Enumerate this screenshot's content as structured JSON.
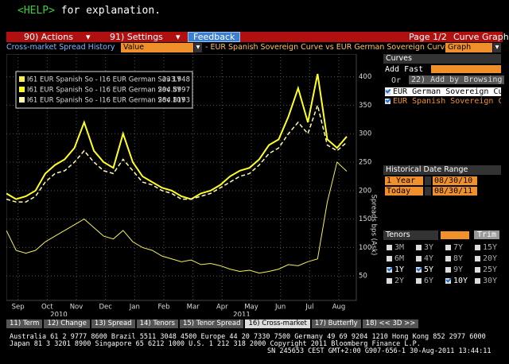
{
  "help": {
    "key": "<HELP>",
    "text": "for explanation."
  },
  "toolbar": {
    "actions": "90) Actions",
    "settings": "91) Settings",
    "feedback": "Feedback",
    "page": "Page 1/2",
    "view": "Curve Graph"
  },
  "subbar": {
    "title": "Cross-market Spread History",
    "field": "Value",
    "description": "- EUR Spanish Sovereign Curve vs EUR German Sovereign Curve",
    "mode": "Graph"
  },
  "chart": {
    "type": "line",
    "y_label": "Spreads bps (Ask)",
    "categories": [
      "Sep",
      "Oct",
      "Nov",
      "Dec",
      "Jan",
      "Feb",
      "Mar",
      "Apr",
      "May",
      "Jun",
      "Jul",
      "Aug"
    ],
    "years": [
      "2010",
      "2011"
    ],
    "ylim": [
      7,
      440
    ],
    "yticks": [
      50,
      100,
      150,
      200,
      250,
      300,
      350,
      400
    ],
    "grid": true,
    "series": [
      {
        "name": "I61 EUR Spanish So - I16 EUR German Sov 1Y",
        "last": 233.948,
        "color": "#f5f05a",
        "dash": false,
        "width": 1,
        "values": [
          130,
          95,
          90,
          95,
          110,
          120,
          130,
          140,
          150,
          135,
          120,
          115,
          130,
          110,
          100,
          95,
          85,
          80,
          75,
          78,
          70,
          72,
          68,
          62,
          58,
          60,
          55,
          58,
          62,
          70,
          68,
          75,
          80,
          180,
          250,
          234
        ]
      },
      {
        "name": "I61 EUR Spanish So - I16 EUR German Sov 5Y",
        "last": 294.8997,
        "color": "#ffff20",
        "dash": false,
        "width": 2,
        "values": [
          195,
          185,
          190,
          200,
          230,
          245,
          255,
          275,
          320,
          270,
          250,
          240,
          300,
          250,
          225,
          215,
          205,
          200,
          190,
          185,
          195,
          200,
          210,
          225,
          235,
          240,
          255,
          280,
          290,
          330,
          380,
          320,
          405,
          290,
          275,
          295
        ]
      },
      {
        "name": "I61 EUR Spanish So - I16 EUR German Sov 10Y",
        "last": 284.8193,
        "color": "#fff8b0",
        "dash": true,
        "width": 1.5,
        "values": [
          185,
          180,
          180,
          190,
          215,
          230,
          235,
          250,
          270,
          250,
          235,
          230,
          255,
          235,
          215,
          210,
          200,
          195,
          185,
          185,
          190,
          195,
          205,
          215,
          225,
          230,
          245,
          265,
          275,
          300,
          320,
          300,
          350,
          280,
          270,
          285
        ]
      }
    ]
  },
  "panel": {
    "curves_title": "Curves",
    "add_fast": "Add Fast",
    "or": "Or",
    "browse": "22) Add by Browsing",
    "curves": [
      {
        "name": "EUR German Sovereign Cu",
        "checked": true
      },
      {
        "name": "EUR Spanish Sovereign Cu",
        "checked": true
      }
    ],
    "date_title": "Historical Date Range",
    "range": [
      {
        "label": "1 Year",
        "date": "08/30/10"
      },
      {
        "label": "Today",
        "date": "08/30/11"
      }
    ],
    "tenors_title": "Tenors",
    "trim": "Trim",
    "tenors": [
      {
        "name": "3M",
        "checked": false
      },
      {
        "name": "3Y",
        "checked": false
      },
      {
        "name": "7Y",
        "checked": false
      },
      {
        "name": "15Y",
        "checked": false
      },
      {
        "name": "6M",
        "checked": false
      },
      {
        "name": "4Y",
        "checked": false
      },
      {
        "name": "8Y",
        "checked": false
      },
      {
        "name": "20Y",
        "checked": false
      },
      {
        "name": "1Y",
        "checked": true
      },
      {
        "name": "5Y",
        "checked": true
      },
      {
        "name": "9Y",
        "checked": false
      },
      {
        "name": "25Y",
        "checked": false
      },
      {
        "name": "2Y",
        "checked": false
      },
      {
        "name": "6Y",
        "checked": false
      },
      {
        "name": "10Y",
        "checked": true
      },
      {
        "name": "30Y",
        "checked": false
      }
    ]
  },
  "tabs": [
    "11) Term",
    "12) Change",
    "13) Spread",
    "14) Tenors",
    "15) Tenor Spread",
    "16) Cross-market",
    "17) Butterfly",
    "18) << 3D >>"
  ],
  "active_tab": 5,
  "footer": [
    "Australia 61 2 9777 8600 Brazil 5511 3048 4500 Europe 44 20 7330 7500 Germany 49 69 9204 1210 Hong Kong 852 2977 6000",
    "Japan 81 3 3201 8900        Singapore 65 6212 1000        U.S. 1 212 318 2000        Copyright 2011 Bloomberg Finance L.P.",
    "SN 245653 CEST GMT+2:00 G907-656-1 30-Aug-2011 13:44:11"
  ]
}
